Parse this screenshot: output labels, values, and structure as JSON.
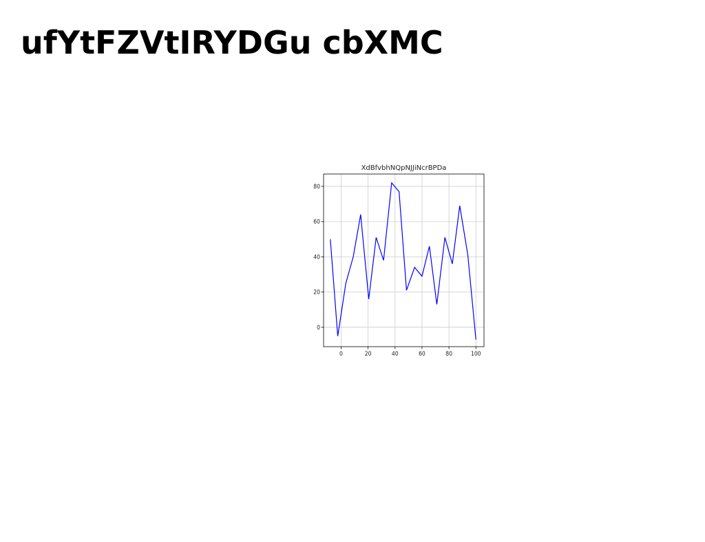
{
  "page": {
    "title": "ufYtFZVtIRYDGu cbXMC"
  },
  "chart_data": {
    "type": "line",
    "title": "XdBfvbhNQpNJJiNcrBPDa",
    "xlabel": "",
    "ylabel": "",
    "xlim": [
      -13,
      106
    ],
    "ylim": [
      -11,
      87
    ],
    "grid": true,
    "xticks": [
      0,
      20,
      40,
      60,
      80,
      100
    ],
    "yticks": [
      0,
      20,
      40,
      60,
      80
    ],
    "series": [
      {
        "color": "#0000ff",
        "x": [
          -8,
          -2.5,
          3.5,
          9,
          14.5,
          20.5,
          26,
          31.5,
          37.5,
          43,
          48.5,
          54.5,
          60,
          65.5,
          71,
          77,
          82.5,
          88,
          94,
          100
        ],
        "y": [
          50,
          -5,
          25,
          40,
          64,
          16,
          51,
          38,
          82,
          77,
          21,
          34,
          29,
          46,
          13,
          51,
          36,
          69,
          41,
          -7
        ]
      }
    ]
  }
}
